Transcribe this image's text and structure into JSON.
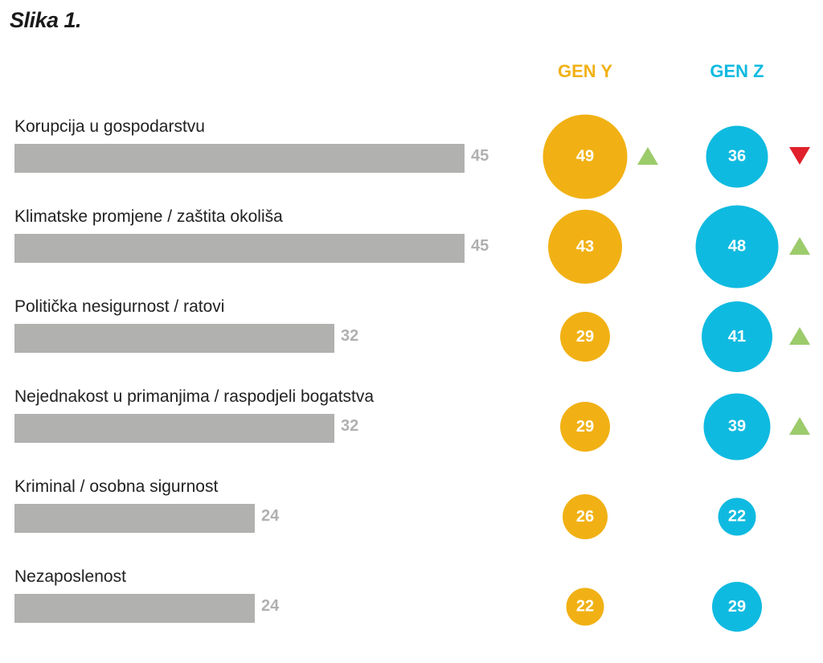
{
  "figure": {
    "title": "Slika 1."
  },
  "colors": {
    "bar": "#b1b1b0",
    "gen_y": "#f1b114",
    "gen_z": "#0fbae0",
    "up": "#9ccb6b",
    "down": "#e0212b"
  },
  "chart_data": {
    "type": "bar",
    "title": "Slika 1.",
    "xlabel": "",
    "ylabel": "",
    "categories": [
      "Korupcija u gospodarstvu",
      "Klimatske promjene / zaštita okoliša",
      "Politička nesigurnost / ratovi",
      "Nejednakost u primanjima / raspodjeli bogatstva",
      "Kriminal / osobna sigurnost",
      "Nezaposlenost"
    ],
    "values": [
      45,
      45,
      32,
      32,
      24,
      24
    ],
    "series": [
      {
        "name": "GEN Y",
        "values": [
          49,
          43,
          29,
          29,
          26,
          22
        ],
        "trend": [
          "up",
          null,
          null,
          null,
          null,
          null
        ]
      },
      {
        "name": "GEN Z",
        "values": [
          36,
          48,
          41,
          39,
          22,
          29
        ],
        "trend": [
          "down",
          "up",
          "up",
          "up",
          null,
          null
        ]
      }
    ]
  }
}
